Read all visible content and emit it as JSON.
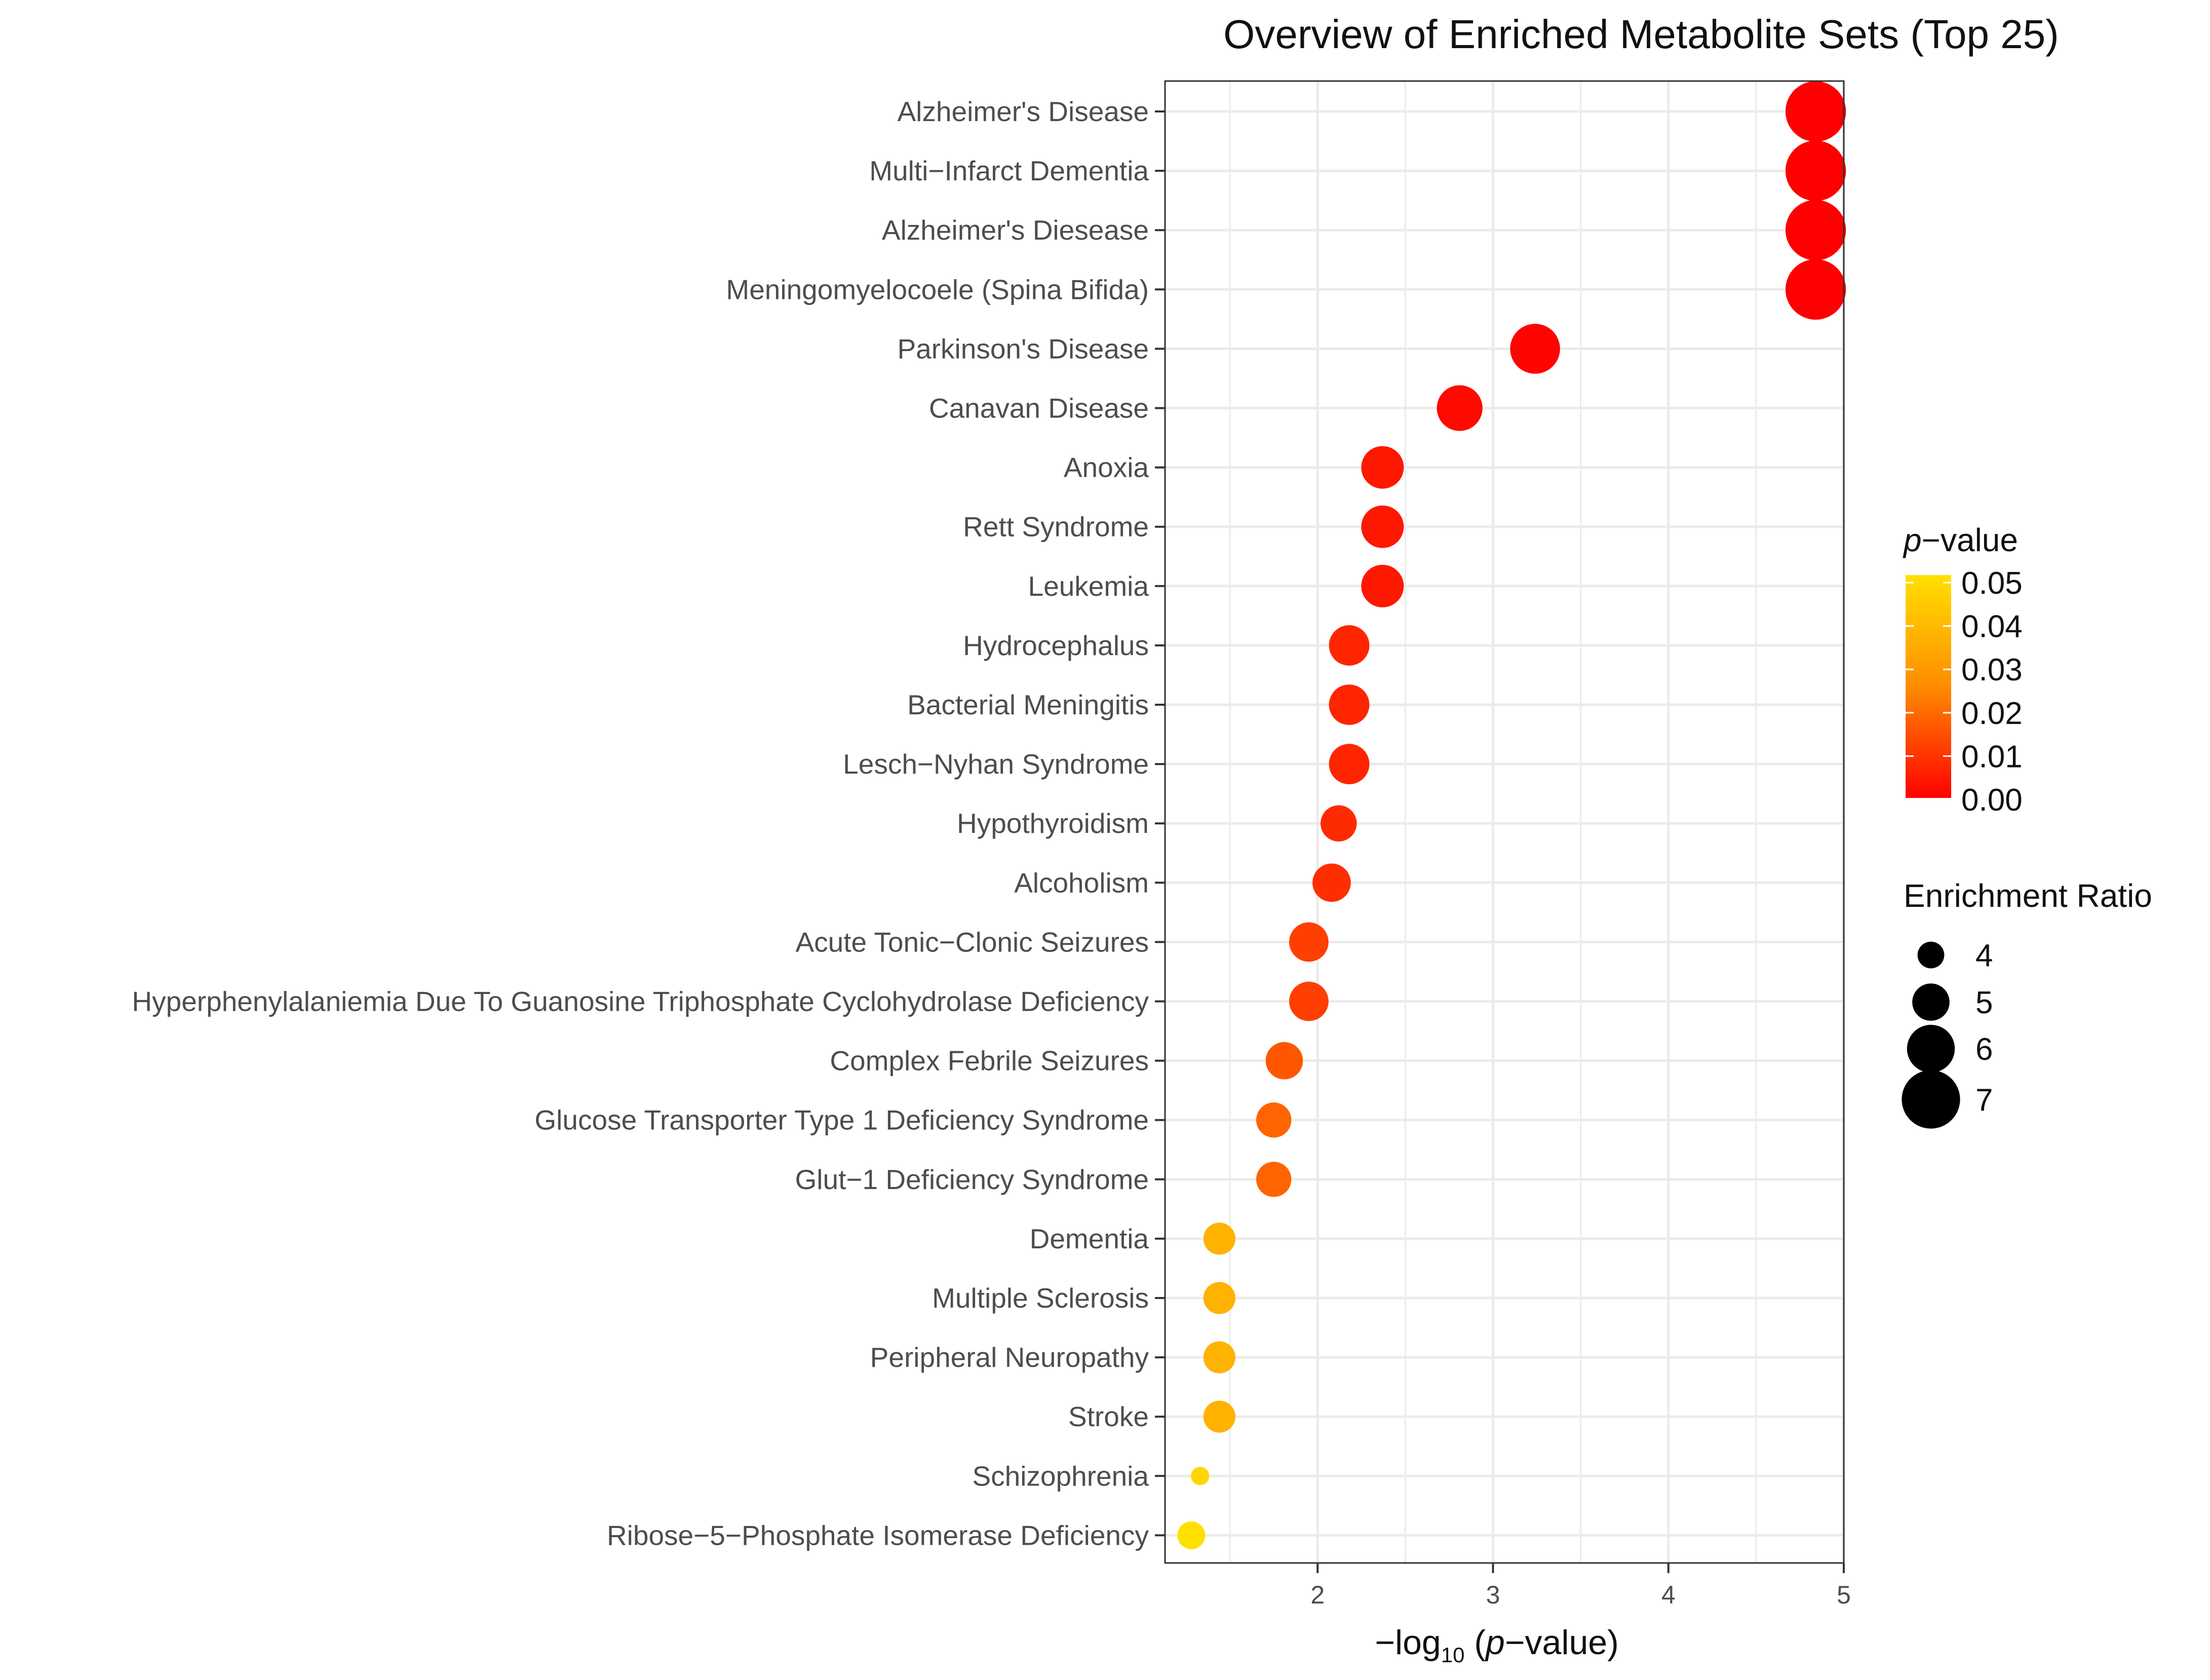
{
  "chart_data": {
    "type": "scatter",
    "title": "Overview of Enriched Metabolite Sets (Top 25)",
    "xlabel": {
      "prefix": "−log",
      "subscript": "10",
      "paren_open": " (",
      "italic": "p",
      "rest": "−value)"
    },
    "ylabel": "",
    "xlim": [
      1.13,
      5.0
    ],
    "xticks": [
      2,
      3,
      4,
      5
    ],
    "xtick_labels": [
      "2",
      "3",
      "4",
      "5"
    ],
    "grid": true,
    "categories": [
      "Alzheimer's Disease",
      "Multi−Infarct Dementia",
      "Alzheimer's Diesease",
      "Meningomyelocoele (Spina Bifida)",
      "Parkinson's Disease",
      "Canavan Disease",
      "Anoxia",
      "Rett Syndrome",
      "Leukemia",
      "Hydrocephalus",
      "Bacterial Meningitis",
      "Lesch−Nyhan Syndrome",
      "Hypothyroidism",
      "Alcoholism",
      "Acute Tonic−Clonic Seizures",
      "Hyperphenylalaniemia Due To Guanosine Triphosphate Cyclohydrolase Deficiency",
      "Complex Febrile Seizures",
      "Glucose Transporter Type 1 Deficiency Syndrome",
      "Glut−1 Deficiency Syndrome",
      "Dementia",
      "Multiple Sclerosis",
      "Peripheral Neuropathy",
      "Stroke",
      "Schizophrenia",
      "Ribose−5−Phosphate Isomerase Deficiency"
    ],
    "x": [
      4.84,
      4.84,
      4.84,
      4.84,
      3.24,
      2.81,
      2.37,
      2.37,
      2.37,
      2.18,
      2.18,
      2.18,
      2.12,
      2.08,
      1.95,
      1.95,
      1.81,
      1.75,
      1.75,
      1.44,
      1.44,
      1.44,
      1.44,
      1.33,
      1.28
    ],
    "p_values": [
      1.45e-05,
      1.45e-05,
      1.45e-05,
      1.45e-05,
      0.00058,
      0.0016,
      0.0043,
      0.0043,
      0.0043,
      0.0066,
      0.0066,
      0.0066,
      0.0076,
      0.0083,
      0.0112,
      0.0112,
      0.0155,
      0.0178,
      0.0178,
      0.0363,
      0.0363,
      0.0363,
      0.0363,
      0.0468,
      0.0525
    ],
    "enrichment_ratio": [
      7.2,
      7.2,
      7.2,
      7.2,
      6.2,
      5.8,
      5.5,
      5.5,
      5.5,
      5.3,
      5.3,
      5.3,
      4.9,
      5.1,
      5.2,
      5.2,
      5.0,
      4.8,
      4.8,
      4.5,
      4.5,
      4.5,
      4.5,
      3.2,
      4.1
    ],
    "color_legend": {
      "title_italic": "p",
      "title_rest": "−value",
      "min": 0.0,
      "max": 0.05,
      "ticks": [
        "0.05",
        "0.04",
        "0.03",
        "0.02",
        "0.01",
        "0.00"
      ],
      "low_color": "#FF0000",
      "mid_color": "#FF8C00",
      "high_color": "#FFE000"
    },
    "size_legend": {
      "title": "Enrichment Ratio",
      "values": [
        4,
        5,
        6,
        7
      ],
      "labels": [
        "4",
        "5",
        "6",
        "7"
      ]
    },
    "colors": {
      "panel_border": "#333333",
      "grid": "#ebebeb",
      "text": "#4d4d4d",
      "dot_legend": "#000000"
    }
  }
}
